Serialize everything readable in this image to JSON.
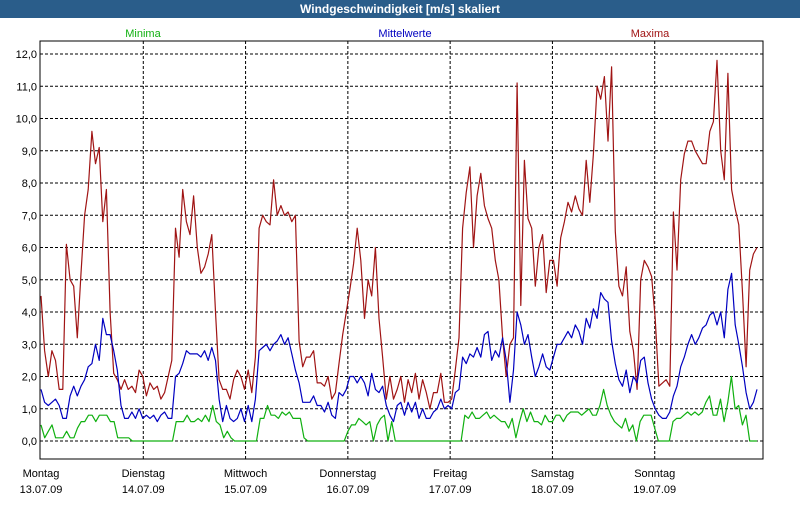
{
  "window": {
    "title": "Windgeschwindigkeit [m/s] skaliert"
  },
  "chart_data": {
    "type": "line",
    "title": "Windgeschwindigkeit [m/s] skaliert",
    "ylim": [
      0,
      12.5
    ],
    "yticks": [
      "0,0",
      "1,0",
      "2,0",
      "3,0",
      "4,0",
      "5,0",
      "6,0",
      "7,0",
      "8,0",
      "9,0",
      "10,0",
      "11,0",
      "12,0"
    ],
    "ytick_values": [
      0,
      1,
      2,
      3,
      4,
      5,
      6,
      7,
      8,
      9,
      10,
      11,
      12
    ],
    "xlim": [
      0,
      7
    ],
    "grid": true,
    "legend_placement": "top",
    "day_labels": [
      {
        "day": "Montag",
        "date": "13.07.09"
      },
      {
        "day": "Dienstag",
        "date": "14.07.09"
      },
      {
        "day": "Mittwoch",
        "date": "15.07.09"
      },
      {
        "day": "Donnerstag",
        "date": "16.07.09"
      },
      {
        "day": "Freitag",
        "date": "17.07.09"
      },
      {
        "day": "Samstag",
        "date": "18.07.09"
      },
      {
        "day": "Sonntag",
        "date": "19.07.09"
      }
    ],
    "series": [
      {
        "name": "Maxima",
        "color": "#a01414",
        "values": [
          4.5,
          2.8,
          2.0,
          2.8,
          2.5,
          1.6,
          1.6,
          6.1,
          5.0,
          4.8,
          3.2,
          5.2,
          7.0,
          7.8,
          9.6,
          8.6,
          9.1,
          6.8,
          7.8,
          4.0,
          2.1,
          1.9,
          1.6,
          1.9,
          1.6,
          1.7,
          1.5,
          2.2,
          2.0,
          1.4,
          1.8,
          1.6,
          1.7,
          1.3,
          1.5,
          2.0,
          2.5,
          6.6,
          5.7,
          7.8,
          6.8,
          6.4,
          7.6,
          6.0,
          5.2,
          5.4,
          5.8,
          6.4,
          4.0,
          1.9,
          1.6,
          1.6,
          1.3,
          1.9,
          2.2,
          2.0,
          1.6,
          2.2,
          1.5,
          2.6,
          6.6,
          7.0,
          6.8,
          6.7,
          8.1,
          7.0,
          7.3,
          7.0,
          7.1,
          6.8,
          7.0,
          3.1,
          2.3,
          2.6,
          2.6,
          2.8,
          1.8,
          1.8,
          1.7,
          2.0,
          1.3,
          1.5,
          2.4,
          3.3,
          4.0,
          4.7,
          5.5,
          6.6,
          5.6,
          3.8,
          5.0,
          4.5,
          6.0,
          3.8,
          2.6,
          1.3,
          2.0,
          1.3,
          1.6,
          2.0,
          1.2,
          1.9,
          1.5,
          2.1,
          1.3,
          1.9,
          1.5,
          1.0,
          1.5,
          1.5,
          2.1,
          1.2,
          1.2,
          1.3,
          2.2,
          3.2,
          6.6,
          7.7,
          8.5,
          6.0,
          7.6,
          8.3,
          7.3,
          6.9,
          6.6,
          5.6,
          5.0,
          3.2,
          2.0,
          3.0,
          3.2,
          11.1,
          4.2,
          8.7,
          6.9,
          6.6,
          4.8,
          6.0,
          6.4,
          4.6,
          5.6,
          5.6,
          4.8,
          6.3,
          6.8,
          7.4,
          7.1,
          7.6,
          7.2,
          7.0,
          8.7,
          7.4,
          8.9,
          11.0,
          10.6,
          11.3,
          9.3,
          11.6,
          6.5,
          4.8,
          4.5,
          5.4,
          3.4,
          2.8,
          1.6,
          5.0,
          5.6,
          5.4,
          5.1,
          3.8,
          1.7,
          1.8,
          1.9,
          1.7,
          7.1,
          5.3,
          8.1,
          8.9,
          9.3,
          9.3,
          9.0,
          8.8,
          8.6,
          8.6,
          9.6,
          9.9,
          11.8,
          9.0,
          8.1,
          11.4,
          7.8,
          7.2,
          6.7,
          4.6,
          2.3,
          5.3,
          5.8,
          6.0
        ]
      },
      {
        "name": "Mittelwerte",
        "color": "#0000c0",
        "values": [
          1.6,
          1.2,
          1.1,
          1.2,
          1.3,
          1.1,
          0.7,
          0.7,
          1.4,
          1.7,
          1.4,
          1.7,
          1.9,
          2.3,
          2.4,
          3.0,
          2.5,
          3.8,
          3.3,
          3.3,
          2.8,
          2.2,
          1.1,
          0.7,
          0.7,
          0.9,
          0.7,
          1.0,
          0.7,
          0.8,
          0.7,
          0.8,
          0.6,
          0.8,
          0.9,
          0.7,
          0.7,
          2.0,
          2.1,
          2.4,
          2.8,
          2.7,
          2.7,
          2.7,
          2.6,
          2.8,
          2.5,
          2.9,
          2.5,
          1.3,
          0.6,
          1.1,
          0.7,
          0.6,
          0.7,
          1.0,
          0.6,
          1.1,
          0.6,
          1.3,
          2.8,
          2.9,
          3.0,
          2.8,
          3.0,
          3.1,
          3.3,
          3.0,
          3.2,
          2.7,
          2.2,
          1.8,
          1.2,
          1.2,
          1.2,
          1.4,
          1.1,
          1.1,
          0.9,
          1.2,
          0.8,
          0.7,
          1.5,
          1.4,
          1.6,
          2.0,
          2.0,
          1.8,
          2.0,
          1.8,
          1.4,
          2.1,
          1.6,
          1.5,
          1.7,
          1.1,
          0.8,
          0.6,
          1.1,
          1.2,
          0.8,
          1.2,
          0.9,
          1.2,
          0.7,
          1.0,
          0.7,
          0.7,
          0.9,
          1.0,
          1.3,
          1.0,
          1.1,
          1.0,
          1.5,
          1.6,
          2.6,
          2.4,
          2.7,
          2.6,
          2.9,
          2.6,
          3.3,
          3.4,
          2.5,
          2.8,
          2.6,
          3.2,
          2.5,
          1.2,
          2.2,
          4.0,
          3.6,
          3.0,
          3.3,
          2.6,
          2.0,
          2.3,
          2.7,
          2.3,
          2.2,
          2.6,
          3.0,
          3.0,
          3.2,
          3.4,
          3.2,
          3.6,
          3.4,
          3.0,
          3.8,
          3.5,
          4.1,
          3.8,
          4.6,
          4.4,
          4.3,
          3.1,
          2.4,
          1.9,
          1.7,
          2.2,
          1.5,
          2.0,
          1.8,
          2.5,
          2.6,
          1.8,
          1.3,
          1.0,
          0.8,
          0.7,
          0.7,
          0.9,
          1.4,
          1.7,
          2.3,
          2.6,
          3.0,
          3.3,
          3.0,
          3.2,
          3.5,
          3.6,
          3.9,
          4.0,
          3.6,
          4.0,
          3.2,
          4.7,
          5.2,
          3.6,
          3.0,
          2.3,
          1.5,
          1.0,
          1.2,
          1.6
        ]
      },
      {
        "name": "Minima",
        "color": "#10b010",
        "values": [
          0.5,
          0.1,
          0.3,
          0.5,
          0.1,
          0.1,
          0.1,
          0.3,
          0.1,
          0.1,
          0.4,
          0.6,
          0.6,
          0.8,
          0.8,
          0.6,
          0.8,
          0.8,
          0.8,
          0.6,
          0.6,
          0.1,
          0.1,
          0.1,
          0.1,
          0.0,
          0.0,
          0.0,
          0.0,
          0.0,
          0.0,
          0.0,
          0.0,
          0.0,
          0.0,
          0.0,
          0.0,
          0.6,
          0.6,
          0.6,
          0.8,
          0.6,
          0.6,
          0.7,
          0.6,
          0.8,
          0.6,
          1.1,
          0.6,
          0.5,
          0.1,
          0.3,
          0.1,
          0.0,
          0.0,
          0.0,
          0.0,
          0.0,
          0.0,
          0.0,
          0.7,
          0.7,
          1.1,
          0.8,
          0.8,
          0.7,
          0.9,
          0.8,
          0.9,
          0.7,
          0.7,
          0.7,
          0.1,
          0.0,
          0.0,
          0.0,
          0.0,
          0.0,
          0.0,
          0.0,
          0.0,
          0.0,
          0.0,
          0.0,
          0.3,
          0.5,
          0.5,
          0.7,
          0.6,
          0.5,
          0.6,
          0.0,
          0.5,
          0.7,
          0.8,
          0.0,
          0.6,
          0.0,
          0.0,
          0.0,
          0.0,
          0.0,
          0.0,
          0.0,
          0.0,
          0.0,
          0.0,
          0.0,
          0.0,
          0.0,
          0.0,
          0.0,
          0.0,
          0.0,
          0.0,
          0.0,
          0.8,
          0.7,
          0.9,
          0.7,
          0.7,
          0.8,
          0.9,
          0.7,
          0.8,
          0.7,
          0.6,
          0.6,
          0.4,
          0.7,
          0.1,
          0.6,
          1.0,
          0.6,
          0.9,
          0.6,
          0.6,
          0.5,
          0.8,
          0.6,
          0.6,
          0.8,
          0.8,
          0.6,
          0.8,
          0.9,
          0.9,
          0.9,
          0.8,
          0.9,
          1.0,
          0.8,
          0.8,
          1.1,
          1.6,
          1.1,
          0.8,
          0.6,
          0.5,
          0.4,
          0.7,
          0.3,
          0.5,
          0.0,
          0.6,
          0.8,
          0.8,
          0.8,
          0.4,
          0.0,
          0.0,
          0.0,
          0.0,
          0.6,
          0.7,
          0.7,
          0.8,
          0.9,
          0.8,
          0.9,
          0.8,
          0.9,
          1.2,
          1.4,
          0.8,
          0.8,
          1.3,
          0.6,
          1.2,
          2.0,
          1.0,
          1.1,
          0.5,
          0.8,
          0.0,
          0.0,
          0.0
        ]
      }
    ]
  }
}
